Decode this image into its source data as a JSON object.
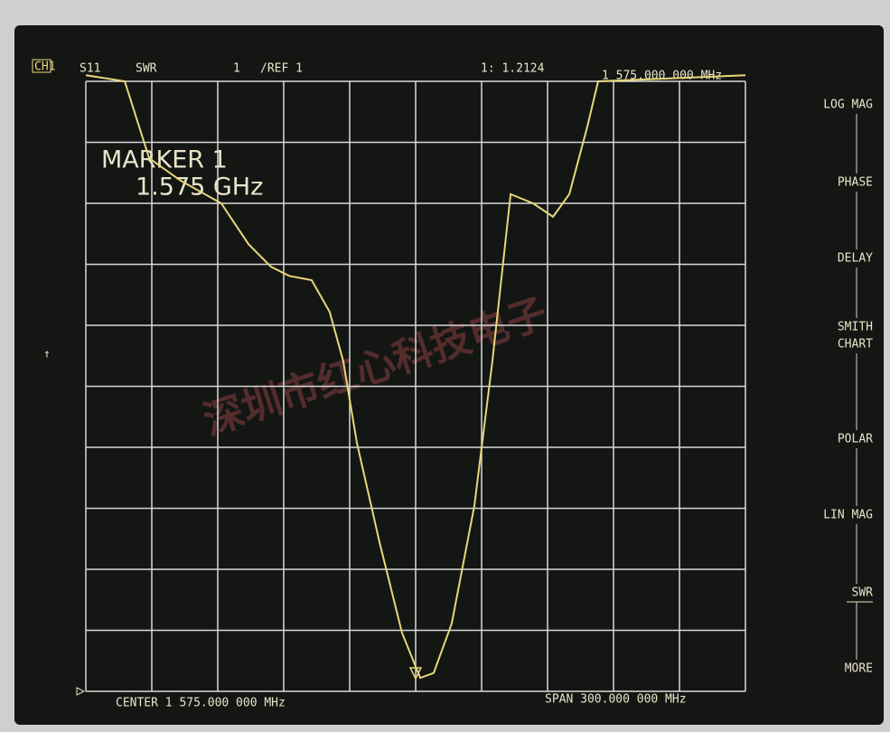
{
  "header": {
    "channel": "CH1",
    "parameter": "S11",
    "format": "SWR",
    "scale": "1",
    "reference": "/REF 1",
    "marker_readout": "1: 1.2124",
    "marker_frequency": "1 575.000 000 MHz"
  },
  "annotation": {
    "title": "MARKER 1",
    "value": "1.575 GHz"
  },
  "footer": {
    "center": "CENTER 1 575.000 000 MHz",
    "span": "SPAN 300.000 000 MHz"
  },
  "watermark": "深圳市红心科技电子",
  "softkeys": [
    "LOG MAG",
    "PHASE",
    "DELAY",
    "SMITH",
    "CHART",
    "POLAR",
    "LIN MAG",
    "SWR",
    "MORE"
  ],
  "chart_data": {
    "type": "line",
    "color": "#e6d77a",
    "grid": true,
    "xlim": [
      1425,
      1725
    ],
    "ylim": [
      1,
      11
    ],
    "xticks": [
      1425,
      1455,
      1485,
      1515,
      1545,
      1575,
      1605,
      1635,
      1665,
      1695,
      1725
    ],
    "yticks": [
      1,
      2,
      3,
      4,
      5,
      6,
      7,
      8,
      9,
      10,
      11
    ],
    "x": [
      1425,
      1442.7,
      1453.8,
      1468.2,
      1486.6,
      1499,
      1509.2,
      1517.5,
      1527.7,
      1535.9,
      1542.1,
      1548.3,
      1558.6,
      1568.8,
      1577.1,
      1583.2,
      1591.4,
      1601.7,
      1609.9,
      1618.2,
      1628.4,
      1637.5,
      1644.9,
      1653.1,
      1658,
      1725
    ],
    "values": [
      11.1,
      11,
      9.74,
      9.37,
      9,
      8.33,
      7.96,
      7.81,
      7.74,
      7.22,
      6.41,
      5.07,
      3.44,
      1.96,
      1.22,
      1.3,
      2.11,
      4.04,
      6.41,
      9.15,
      9,
      8.78,
      9.15,
      10.26,
      11,
      11.1
    ]
  }
}
